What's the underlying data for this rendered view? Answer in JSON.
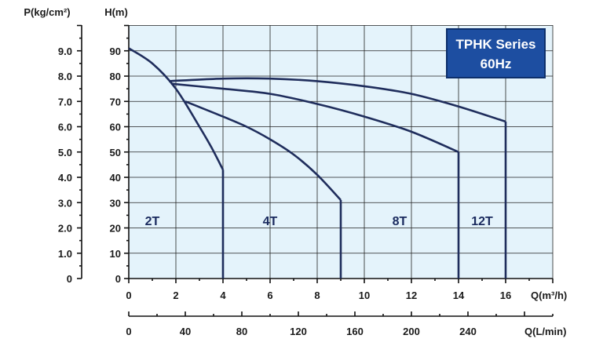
{
  "chart_data": {
    "type": "line",
    "title_lines": [
      "TPHK Series",
      "60Hz"
    ],
    "xlabel": "Q(m³/h)",
    "x2label": "Q(L/min)",
    "ylabel_left_pressure": "P(kg/cm²)",
    "ylabel_head": "H(m)",
    "xlim": [
      0,
      18
    ],
    "ylim": [
      0,
      100
    ],
    "x_ticks": [
      "0",
      "2",
      "4",
      "6",
      "8",
      "10",
      "12",
      "14",
      "16"
    ],
    "x2_ticks": [
      "0",
      "40",
      "80",
      "120",
      "160",
      "200",
      "240"
    ],
    "h_ticks": [
      "0",
      "10",
      "20",
      "30",
      "40",
      "50",
      "60",
      "70",
      "80",
      "90"
    ],
    "p_ticks": [
      "0",
      "1.0",
      "2.0",
      "3.0",
      "4.0",
      "5.0",
      "6.0",
      "7.0",
      "8.0",
      "9.0"
    ],
    "grid": true,
    "series": [
      {
        "name": "2T",
        "x": [
          0,
          1,
          2,
          3,
          3.5,
          4
        ],
        "y": [
          91,
          85,
          75,
          60,
          52,
          43
        ]
      },
      {
        "name": "4T",
        "x": [
          2.4,
          4,
          5,
          6,
          7,
          8,
          9
        ],
        "y": [
          70,
          64,
          60,
          55,
          49,
          41,
          31
        ]
      },
      {
        "name": "8T",
        "x": [
          1.8,
          4,
          6,
          8,
          10,
          12,
          14
        ],
        "y": [
          77,
          75,
          73,
          69,
          64,
          58,
          50
        ]
      },
      {
        "name": "12T",
        "x": [
          1.7,
          4,
          6,
          8,
          10,
          12,
          14,
          16
        ],
        "y": [
          78,
          79,
          79,
          78,
          76,
          73,
          68,
          62
        ]
      }
    ]
  }
}
